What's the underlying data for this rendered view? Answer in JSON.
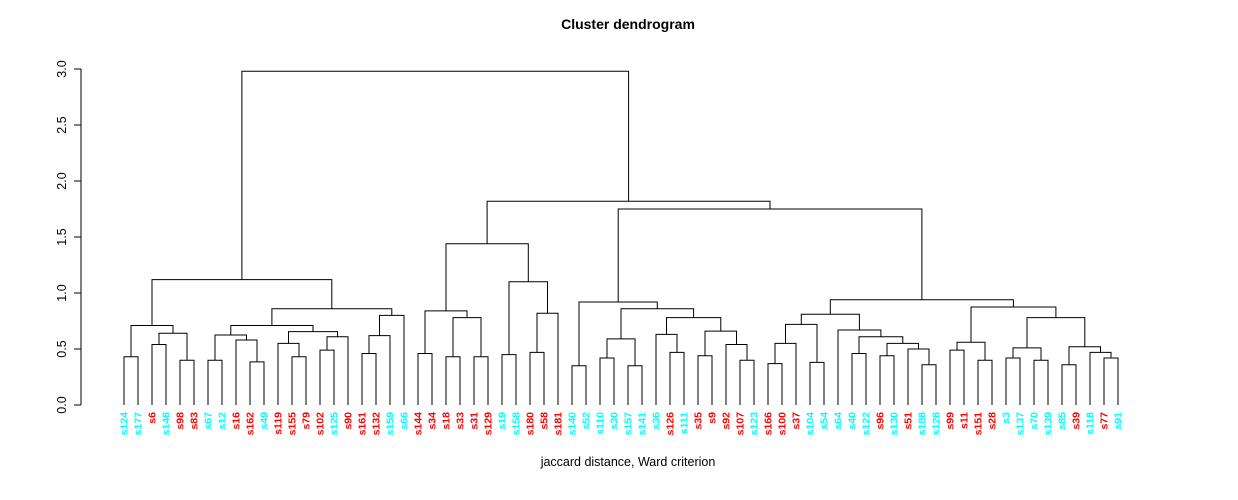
{
  "chart_data": {
    "type": "dendrogram",
    "title": "Cluster dendrogram",
    "xlabel": "jaccard distance, Ward criterion",
    "ylabel": "",
    "ylim": [
      0.0,
      3.0
    ],
    "yticks": [
      "0.0",
      "0.5",
      "1.0",
      "1.5",
      "2.0",
      "2.5",
      "3.0"
    ],
    "grid": false,
    "line_color": "#000000",
    "colors": {
      "red": "#FF0000",
      "cyan": "#00FFFF"
    },
    "leaves": [
      [
        "s124",
        "cyan"
      ],
      [
        "s177",
        "cyan"
      ],
      [
        "s6",
        "red"
      ],
      [
        "s148",
        "cyan"
      ],
      [
        "s98",
        "red"
      ],
      [
        "s83",
        "red"
      ],
      [
        "s67",
        "cyan"
      ],
      [
        "s12",
        "cyan"
      ],
      [
        "s16",
        "red"
      ],
      [
        "s162",
        "red"
      ],
      [
        "s49",
        "cyan"
      ],
      [
        "s119",
        "red"
      ],
      [
        "s155",
        "red"
      ],
      [
        "s79",
        "red"
      ],
      [
        "s102",
        "red"
      ],
      [
        "s125",
        "cyan"
      ],
      [
        "s90",
        "red"
      ],
      [
        "s161",
        "red"
      ],
      [
        "s132",
        "red"
      ],
      [
        "s159",
        "cyan"
      ],
      [
        "s66",
        "cyan"
      ],
      [
        "s144",
        "red"
      ],
      [
        "s34",
        "red"
      ],
      [
        "s18",
        "red"
      ],
      [
        "s33",
        "red"
      ],
      [
        "s31",
        "red"
      ],
      [
        "s129",
        "red"
      ],
      [
        "s19",
        "cyan"
      ],
      [
        "s158",
        "cyan"
      ],
      [
        "s180",
        "red"
      ],
      [
        "s58",
        "red"
      ],
      [
        "s181",
        "red"
      ],
      [
        "s140",
        "cyan"
      ],
      [
        "s52",
        "cyan"
      ],
      [
        "s110",
        "cyan"
      ],
      [
        "s30",
        "cyan"
      ],
      [
        "s157",
        "cyan"
      ],
      [
        "s141",
        "cyan"
      ],
      [
        "s36",
        "cyan"
      ],
      [
        "s126",
        "red"
      ],
      [
        "s111",
        "cyan"
      ],
      [
        "s35",
        "red"
      ],
      [
        "s9",
        "red"
      ],
      [
        "s92",
        "red"
      ],
      [
        "s107",
        "red"
      ],
      [
        "s123",
        "cyan"
      ],
      [
        "s166",
        "red"
      ],
      [
        "s100",
        "red"
      ],
      [
        "s37",
        "red"
      ],
      [
        "s104",
        "cyan"
      ],
      [
        "s54",
        "cyan"
      ],
      [
        "s64",
        "cyan"
      ],
      [
        "s40",
        "cyan"
      ],
      [
        "s122",
        "cyan"
      ],
      [
        "s96",
        "red"
      ],
      [
        "s130",
        "cyan"
      ],
      [
        "s51",
        "red"
      ],
      [
        "s188",
        "cyan"
      ],
      [
        "s128",
        "cyan"
      ],
      [
        "s99",
        "red"
      ],
      [
        "s11",
        "red"
      ],
      [
        "s151",
        "red"
      ],
      [
        "s28",
        "red"
      ],
      [
        "s3",
        "cyan"
      ],
      [
        "s137",
        "cyan"
      ],
      [
        "s70",
        "cyan"
      ],
      [
        "s139",
        "cyan"
      ],
      [
        "s85",
        "cyan"
      ],
      [
        "s39",
        "red"
      ],
      [
        "s118",
        "cyan"
      ],
      [
        "s77",
        "red"
      ],
      [
        "s91",
        "cyan"
      ]
    ],
    "tree": [
      2.98,
      [
        1.12,
        [
          0.71,
          [
            0.43,
            "s124",
            "s177"
          ],
          [
            0.64,
            [
              0.54,
              "s6",
              "s148"
            ],
            [
              0.4,
              "s98",
              "s83"
            ]
          ]
        ],
        [
          0.86,
          [
            0.71,
            [
              0.625,
              [
                0.4,
                "s67",
                "s12"
              ],
              [
                0.58,
                "s16",
                [
                  0.385,
                  "s162",
                  "s49"
                ]
              ]
            ],
            [
              0.655,
              [
                0.55,
                "s119",
                [
                  0.43,
                  "s155",
                  "s79"
                ]
              ],
              [
                0.61,
                [
                  0.49,
                  "s102",
                  "s125"
                ],
                "s90"
              ]
            ]
          ],
          [
            0.8,
            [
              0.62,
              [
                0.46,
                "s161",
                "s132"
              ],
              "s159"
            ],
            "s66"
          ]
        ]
      ],
      [
        1.82,
        [
          1.44,
          [
            0.84,
            [
              0.46,
              "s144",
              "s34"
            ],
            [
              0.78,
              [
                0.43,
                "s18",
                "s33"
              ],
              [
                0.43,
                "s31",
                "s129"
              ]
            ]
          ],
          [
            1.1,
            [
              0.45,
              "s19",
              "s158"
            ],
            [
              0.82,
              [
                0.47,
                "s180",
                "s58"
              ],
              "s181"
            ]
          ]
        ],
        [
          1.75,
          [
            0.92,
            [
              0.35,
              "s140",
              "s52"
            ],
            [
              0.86,
              [
                0.59,
                [
                  0.42,
                  "s110",
                  "s30"
                ],
                [
                  0.35,
                  "s157",
                  "s141"
                ]
              ],
              [
                0.78,
                [
                  0.63,
                  "s36",
                  [
                    0.47,
                    "s126",
                    "s111"
                  ]
                ],
                [
                  0.66,
                  [
                    0.44,
                    "s35",
                    "s9"
                  ],
                  [
                    0.54,
                    "s92",
                    [
                      0.4,
                      "s107",
                      "s123"
                    ]
                  ]
                ]
              ]
            ]
          ],
          [
            0.94,
            [
              0.81,
              [
                0.72,
                [
                  0.55,
                  [
                    0.37,
                    "s166",
                    "s100"
                  ],
                  "s37"
                ],
                [
                  0.38,
                  "s104",
                  "s54"
                ]
              ],
              [
                0.67,
                "s64",
                [
                  0.61,
                  [
                    0.46,
                    "s40",
                    "s122"
                  ],
                  [
                    0.55,
                    [
                      0.44,
                      "s96",
                      "s130"
                    ],
                    [
                      0.5,
                      "s51",
                      [
                        0.36,
                        "s188",
                        "s128"
                      ]
                    ]
                  ]
                ]
              ]
            ],
            [
              0.875,
              [
                0.56,
                [
                  0.49,
                  "s99",
                  "s11"
                ],
                [
                  0.4,
                  "s151",
                  "s28"
                ]
              ],
              [
                0.78,
                [
                  0.51,
                  [
                    0.42,
                    "s3",
                    "s137"
                  ],
                  [
                    0.4,
                    "s70",
                    "s139"
                  ]
                ],
                [
                  0.52,
                  [
                    0.36,
                    "s85",
                    "s39"
                  ],
                  [
                    0.47,
                    "s118",
                    [
                      0.42,
                      "s77",
                      "s91"
                    ]
                  ]
                ]
              ]
            ]
          ]
        ]
      ]
    ]
  }
}
